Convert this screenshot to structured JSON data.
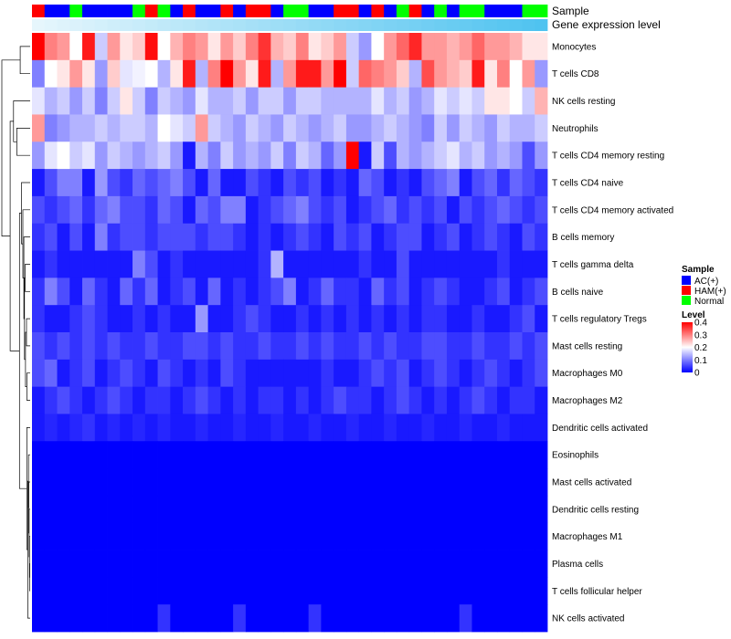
{
  "chart_data": {
    "type": "heatmap",
    "annotation_labels": {
      "sample": "Sample",
      "gene_expression": "Gene expression level"
    },
    "rows": [
      "Monocytes",
      "T cells CD8",
      "NK cells resting",
      "Neutrophils",
      "T cells CD4 memory resting",
      "T cells CD4 naive",
      "T cells CD4 memory activated",
      "B cells memory",
      "T cells gamma delta",
      "B cells naive",
      "T cells regulatory  Tregs",
      "Mast cells resting",
      "Macrophages M0",
      "Macrophages M2",
      "Dendritic cells activated",
      "Eosinophils",
      "Mast cells activated",
      "Dendritic cells resting",
      "Macrophages M1",
      "Plasma cells",
      "T cells follicular helper",
      "NK cells activated"
    ],
    "sample_groups": [
      "HAM(+)",
      "AC(+)",
      "AC(+)",
      "Normal",
      "AC(+)",
      "AC(+)",
      "AC(+)",
      "AC(+)",
      "Normal",
      "HAM(+)",
      "Normal",
      "AC(+)",
      "HAM(+)",
      "AC(+)",
      "AC(+)",
      "HAM(+)",
      "AC(+)",
      "HAM(+)",
      "HAM(+)",
      "AC(+)",
      "Normal",
      "Normal",
      "AC(+)",
      "AC(+)",
      "HAM(+)",
      "HAM(+)",
      "AC(+)",
      "HAM(+)",
      "AC(+)",
      "Normal",
      "HAM(+)",
      "AC(+)",
      "Normal",
      "AC(+)",
      "Normal",
      "Normal",
      "AC(+)",
      "AC(+)",
      "AC(+)",
      "Normal",
      "Normal"
    ],
    "gene_expression_level": [
      0.02,
      0.04,
      0.06,
      0.08,
      0.1,
      0.12,
      0.14,
      0.16,
      0.18,
      0.2,
      0.22,
      0.24,
      0.26,
      0.28,
      0.3,
      0.32,
      0.34,
      0.36,
      0.38,
      0.4,
      0.42,
      0.44,
      0.46,
      0.48,
      0.5,
      0.52,
      0.54,
      0.56,
      0.58,
      0.6,
      0.62,
      0.64,
      0.66,
      0.68,
      0.7,
      0.72,
      0.74,
      0.76,
      0.78,
      0.8,
      0.82
    ],
    "legend": {
      "sample_title": "Sample",
      "sample_entries": [
        {
          "label": "AC(+)",
          "color": "#0000ff"
        },
        {
          "label": "HAM(+)",
          "color": "#ff0000"
        },
        {
          "label": "Normal",
          "color": "#00ff00"
        }
      ],
      "level_title": "Level",
      "level_ticks": [
        "0.4",
        "0.3",
        "0.2",
        "0.1",
        "0"
      ],
      "level_range": [
        0,
        0.4
      ],
      "placement": "right"
    },
    "colors": {
      "low": "#0000ff",
      "mid": "#ffffff",
      "high": "#ff0000",
      "gene_expr_low": "#e6f6fc",
      "gene_expr_high": "#4fc3f0"
    },
    "values": [
      [
        0.4,
        0.3,
        0.28,
        0.2,
        0.38,
        0.16,
        0.28,
        0.22,
        0.24,
        0.39,
        0.2,
        0.26,
        0.3,
        0.28,
        0.22,
        0.28,
        0.24,
        0.3,
        0.36,
        0.26,
        0.24,
        0.3,
        0.22,
        0.24,
        0.28,
        0.16,
        0.12,
        0.2,
        0.28,
        0.32,
        0.37,
        0.28,
        0.28,
        0.26,
        0.28,
        0.32,
        0.28,
        0.28,
        0.26,
        0.22,
        0.22
      ],
      [
        0.1,
        0.2,
        0.22,
        0.28,
        0.22,
        0.12,
        0.24,
        0.18,
        0.19,
        0.2,
        0.14,
        0.22,
        0.38,
        0.14,
        0.3,
        0.4,
        0.28,
        0.22,
        0.38,
        0.14,
        0.28,
        0.38,
        0.38,
        0.28,
        0.4,
        0.16,
        0.32,
        0.3,
        0.28,
        0.24,
        0.14,
        0.34,
        0.28,
        0.26,
        0.24,
        0.38,
        0.22,
        0.3,
        0.2,
        0.28,
        0.12
      ],
      [
        0.18,
        0.14,
        0.16,
        0.12,
        0.16,
        0.1,
        0.16,
        0.22,
        0.16,
        0.1,
        0.16,
        0.14,
        0.12,
        0.18,
        0.14,
        0.14,
        0.16,
        0.12,
        0.16,
        0.16,
        0.12,
        0.16,
        0.16,
        0.14,
        0.14,
        0.14,
        0.14,
        0.18,
        0.14,
        0.16,
        0.12,
        0.14,
        0.18,
        0.16,
        0.18,
        0.16,
        0.22,
        0.22,
        0.2,
        0.16,
        0.26
      ],
      [
        0.28,
        0.1,
        0.12,
        0.14,
        0.14,
        0.16,
        0.14,
        0.16,
        0.16,
        0.14,
        0.2,
        0.18,
        0.16,
        0.28,
        0.16,
        0.14,
        0.12,
        0.16,
        0.14,
        0.12,
        0.16,
        0.14,
        0.12,
        0.14,
        0.16,
        0.12,
        0.12,
        0.14,
        0.16,
        0.14,
        0.12,
        0.1,
        0.16,
        0.12,
        0.16,
        0.14,
        0.12,
        0.16,
        0.14,
        0.14,
        0.16
      ],
      [
        0.12,
        0.18,
        0.2,
        0.16,
        0.18,
        0.12,
        0.16,
        0.14,
        0.12,
        0.14,
        0.16,
        0.12,
        0.02,
        0.14,
        0.1,
        0.16,
        0.12,
        0.14,
        0.12,
        0.16,
        0.1,
        0.16,
        0.14,
        0.08,
        0.12,
        0.4,
        0.02,
        0.16,
        0.06,
        0.14,
        0.12,
        0.14,
        0.16,
        0.18,
        0.14,
        0.16,
        0.12,
        0.14,
        0.12,
        0.06,
        0.12
      ],
      [
        0.02,
        0.06,
        0.1,
        0.1,
        0.02,
        0.12,
        0.06,
        0.04,
        0.08,
        0.06,
        0.08,
        0.1,
        0.06,
        0.02,
        0.08,
        0.02,
        0.02,
        0.06,
        0.04,
        0.02,
        0.06,
        0.04,
        0.06,
        0.02,
        0.04,
        0.02,
        0.08,
        0.06,
        0.02,
        0.04,
        0.02,
        0.06,
        0.08,
        0.1,
        0.02,
        0.06,
        0.08,
        0.04,
        0.08,
        0.06,
        0.04
      ],
      [
        0.06,
        0.04,
        0.06,
        0.08,
        0.04,
        0.08,
        0.1,
        0.06,
        0.06,
        0.04,
        0.08,
        0.06,
        0.02,
        0.08,
        0.06,
        0.1,
        0.1,
        0.02,
        0.04,
        0.06,
        0.08,
        0.1,
        0.06,
        0.04,
        0.06,
        0.02,
        0.04,
        0.06,
        0.08,
        0.04,
        0.06,
        0.04,
        0.06,
        0.02,
        0.06,
        0.04,
        0.06,
        0.08,
        0.06,
        0.04,
        0.06
      ],
      [
        0.04,
        0.06,
        0.02,
        0.06,
        0.02,
        0.1,
        0.04,
        0.06,
        0.06,
        0.04,
        0.06,
        0.06,
        0.06,
        0.04,
        0.06,
        0.06,
        0.04,
        0.02,
        0.04,
        0.02,
        0.04,
        0.06,
        0.04,
        0.02,
        0.06,
        0.04,
        0.06,
        0.02,
        0.04,
        0.06,
        0.06,
        0.02,
        0.04,
        0.06,
        0.02,
        0.04,
        0.06,
        0.04,
        0.02,
        0.06,
        0.04
      ],
      [
        0.02,
        0.04,
        0.02,
        0.02,
        0.02,
        0.02,
        0.02,
        0.02,
        0.1,
        0.06,
        0.02,
        0.04,
        0.02,
        0.02,
        0.02,
        0.02,
        0.02,
        0.02,
        0.04,
        0.14,
        0.02,
        0.02,
        0.02,
        0.02,
        0.02,
        0.02,
        0.04,
        0.02,
        0.02,
        0.06,
        0.02,
        0.02,
        0.02,
        0.02,
        0.02,
        0.02,
        0.02,
        0.04,
        0.02,
        0.02,
        0.02
      ],
      [
        0.04,
        0.1,
        0.06,
        0.02,
        0.08,
        0.04,
        0.02,
        0.08,
        0.04,
        0.08,
        0.02,
        0.04,
        0.06,
        0.02,
        0.08,
        0.02,
        0.04,
        0.02,
        0.04,
        0.06,
        0.1,
        0.02,
        0.04,
        0.08,
        0.04,
        0.04,
        0.02,
        0.08,
        0.04,
        0.06,
        0.02,
        0.04,
        0.06,
        0.04,
        0.02,
        0.02,
        0.04,
        0.06,
        0.02,
        0.04,
        0.06
      ],
      [
        0.04,
        0.02,
        0.02,
        0.04,
        0.06,
        0.04,
        0.02,
        0.02,
        0.04,
        0.02,
        0.04,
        0.02,
        0.02,
        0.12,
        0.02,
        0.02,
        0.04,
        0.06,
        0.04,
        0.02,
        0.02,
        0.04,
        0.02,
        0.04,
        0.02,
        0.04,
        0.02,
        0.04,
        0.02,
        0.04,
        0.02,
        0.04,
        0.04,
        0.02,
        0.02,
        0.04,
        0.02,
        0.02,
        0.04,
        0.06,
        0.02
      ],
      [
        0.06,
        0.04,
        0.06,
        0.04,
        0.06,
        0.04,
        0.06,
        0.04,
        0.04,
        0.06,
        0.04,
        0.04,
        0.06,
        0.06,
        0.04,
        0.06,
        0.04,
        0.04,
        0.06,
        0.04,
        0.04,
        0.06,
        0.04,
        0.06,
        0.04,
        0.04,
        0.06,
        0.04,
        0.06,
        0.04,
        0.04,
        0.06,
        0.06,
        0.04,
        0.04,
        0.06,
        0.04,
        0.04,
        0.06,
        0.04,
        0.06
      ],
      [
        0.06,
        0.08,
        0.02,
        0.04,
        0.06,
        0.02,
        0.04,
        0.06,
        0.04,
        0.02,
        0.06,
        0.04,
        0.02,
        0.04,
        0.02,
        0.06,
        0.04,
        0.02,
        0.02,
        0.02,
        0.02,
        0.02,
        0.02,
        0.04,
        0.02,
        0.02,
        0.04,
        0.06,
        0.04,
        0.06,
        0.02,
        0.04,
        0.06,
        0.04,
        0.02,
        0.04,
        0.06,
        0.04,
        0.02,
        0.04,
        0.06
      ],
      [
        0.02,
        0.04,
        0.06,
        0.04,
        0.02,
        0.04,
        0.06,
        0.04,
        0.02,
        0.04,
        0.04,
        0.02,
        0.04,
        0.06,
        0.04,
        0.02,
        0.04,
        0.02,
        0.04,
        0.04,
        0.02,
        0.04,
        0.02,
        0.04,
        0.06,
        0.04,
        0.04,
        0.02,
        0.04,
        0.06,
        0.04,
        0.02,
        0.04,
        0.02,
        0.04,
        0.06,
        0.04,
        0.02,
        0.04,
        0.04,
        0.02
      ],
      [
        0.02,
        0.03,
        0.02,
        0.03,
        0.04,
        0.02,
        0.03,
        0.02,
        0.03,
        0.02,
        0.03,
        0.02,
        0.02,
        0.03,
        0.02,
        0.02,
        0.03,
        0.02,
        0.02,
        0.03,
        0.02,
        0.02,
        0.03,
        0.02,
        0.02,
        0.03,
        0.02,
        0.02,
        0.03,
        0.02,
        0.02,
        0.03,
        0.02,
        0.02,
        0.03,
        0.02,
        0.02,
        0.03,
        0.02,
        0.02,
        0.02
      ],
      [
        0,
        0,
        0,
        0,
        0,
        0,
        0,
        0,
        0,
        0,
        0,
        0,
        0,
        0,
        0,
        0,
        0,
        0,
        0,
        0,
        0,
        0,
        0,
        0,
        0,
        0,
        0,
        0,
        0,
        0,
        0,
        0,
        0,
        0,
        0,
        0,
        0,
        0,
        0,
        0,
        0
      ],
      [
        0,
        0,
        0,
        0,
        0,
        0,
        0,
        0,
        0,
        0,
        0,
        0,
        0,
        0,
        0,
        0,
        0,
        0,
        0,
        0,
        0,
        0,
        0,
        0,
        0,
        0,
        0,
        0,
        0,
        0,
        0,
        0,
        0,
        0,
        0,
        0,
        0,
        0,
        0,
        0,
        0
      ],
      [
        0,
        0,
        0,
        0,
        0,
        0,
        0,
        0,
        0,
        0,
        0,
        0,
        0,
        0,
        0,
        0,
        0,
        0,
        0,
        0,
        0,
        0,
        0,
        0,
        0,
        0,
        0,
        0,
        0,
        0,
        0,
        0,
        0,
        0,
        0,
        0,
        0,
        0,
        0,
        0,
        0
      ],
      [
        0,
        0,
        0,
        0,
        0,
        0,
        0,
        0,
        0,
        0,
        0,
        0,
        0,
        0,
        0,
        0,
        0,
        0,
        0,
        0,
        0,
        0,
        0,
        0,
        0,
        0,
        0,
        0,
        0,
        0,
        0,
        0,
        0,
        0,
        0,
        0,
        0,
        0,
        0,
        0,
        0
      ],
      [
        0,
        0,
        0,
        0,
        0,
        0,
        0,
        0,
        0,
        0,
        0,
        0,
        0,
        0,
        0,
        0,
        0,
        0,
        0,
        0,
        0,
        0,
        0,
        0,
        0,
        0,
        0,
        0,
        0,
        0,
        0,
        0,
        0,
        0,
        0,
        0,
        0,
        0,
        0,
        0,
        0
      ],
      [
        0,
        0,
        0,
        0,
        0,
        0,
        0,
        0,
        0,
        0,
        0,
        0,
        0,
        0,
        0,
        0,
        0,
        0,
        0,
        0,
        0,
        0,
        0,
        0,
        0,
        0,
        0,
        0,
        0,
        0,
        0,
        0,
        0,
        0,
        0,
        0,
        0,
        0,
        0,
        0,
        0
      ],
      [
        0,
        0,
        0,
        0,
        0,
        0,
        0,
        0,
        0,
        0,
        0.04,
        0,
        0,
        0,
        0,
        0,
        0.04,
        0,
        0,
        0,
        0,
        0,
        0.04,
        0,
        0,
        0,
        0,
        0,
        0,
        0,
        0,
        0,
        0,
        0,
        0.04,
        0,
        0,
        0,
        0,
        0,
        0
      ]
    ],
    "dendrogram": {
      "leaf_order": [
        0,
        1,
        2,
        3,
        4,
        5,
        6,
        7,
        8,
        9,
        10,
        11,
        12,
        13,
        14,
        15,
        16,
        17,
        18,
        19,
        20,
        21
      ],
      "merges": [
        [
          0,
          1,
          0.3
        ],
        [
          3,
          4,
          0.4
        ],
        [
          2,
          23,
          0.5
        ],
        [
          19,
          20,
          0.01
        ],
        [
          18,
          25,
          0.02
        ],
        [
          17,
          26,
          0.03
        ],
        [
          16,
          27,
          0.04
        ],
        [
          15,
          28,
          0.05
        ],
        [
          21,
          29,
          0.07
        ],
        [
          14,
          30,
          0.1
        ],
        [
          12,
          13,
          0.1
        ],
        [
          10,
          11,
          0.11
        ],
        [
          32,
          33,
          0.14
        ],
        [
          8,
          9,
          0.15
        ],
        [
          34,
          35,
          0.17
        ],
        [
          7,
          36,
          0.19
        ],
        [
          6,
          37,
          0.22
        ],
        [
          5,
          38,
          0.26
        ],
        [
          31,
          39,
          0.32
        ],
        [
          24,
          40,
          0.6
        ],
        [
          22,
          41,
          0.85
        ]
      ]
    }
  }
}
